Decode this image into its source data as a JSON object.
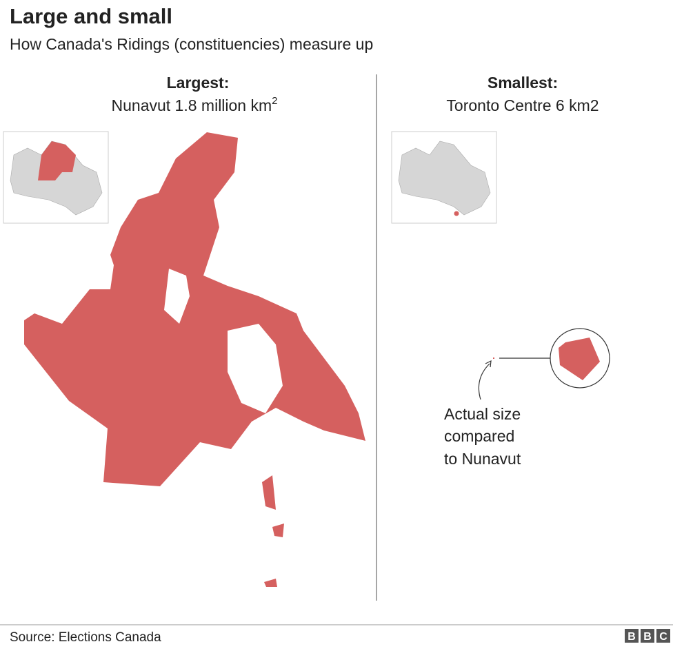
{
  "header": {
    "title": "Large and small",
    "subtitle": "How Canada's Ridings (constituencies) measure up"
  },
  "panels": [
    {
      "heading": "Largest:",
      "label": "Nunavut 1.8 million km",
      "superscript": "2"
    },
    {
      "heading": "Smallest:",
      "label": "Toronto Centre 6 km2"
    }
  ],
  "annotation": [
    "Actual size",
    "compared",
    "to Nunavut"
  ],
  "footer": {
    "source": "Source: Elections Canada",
    "logo": [
      "B",
      "B",
      "C"
    ]
  }
}
